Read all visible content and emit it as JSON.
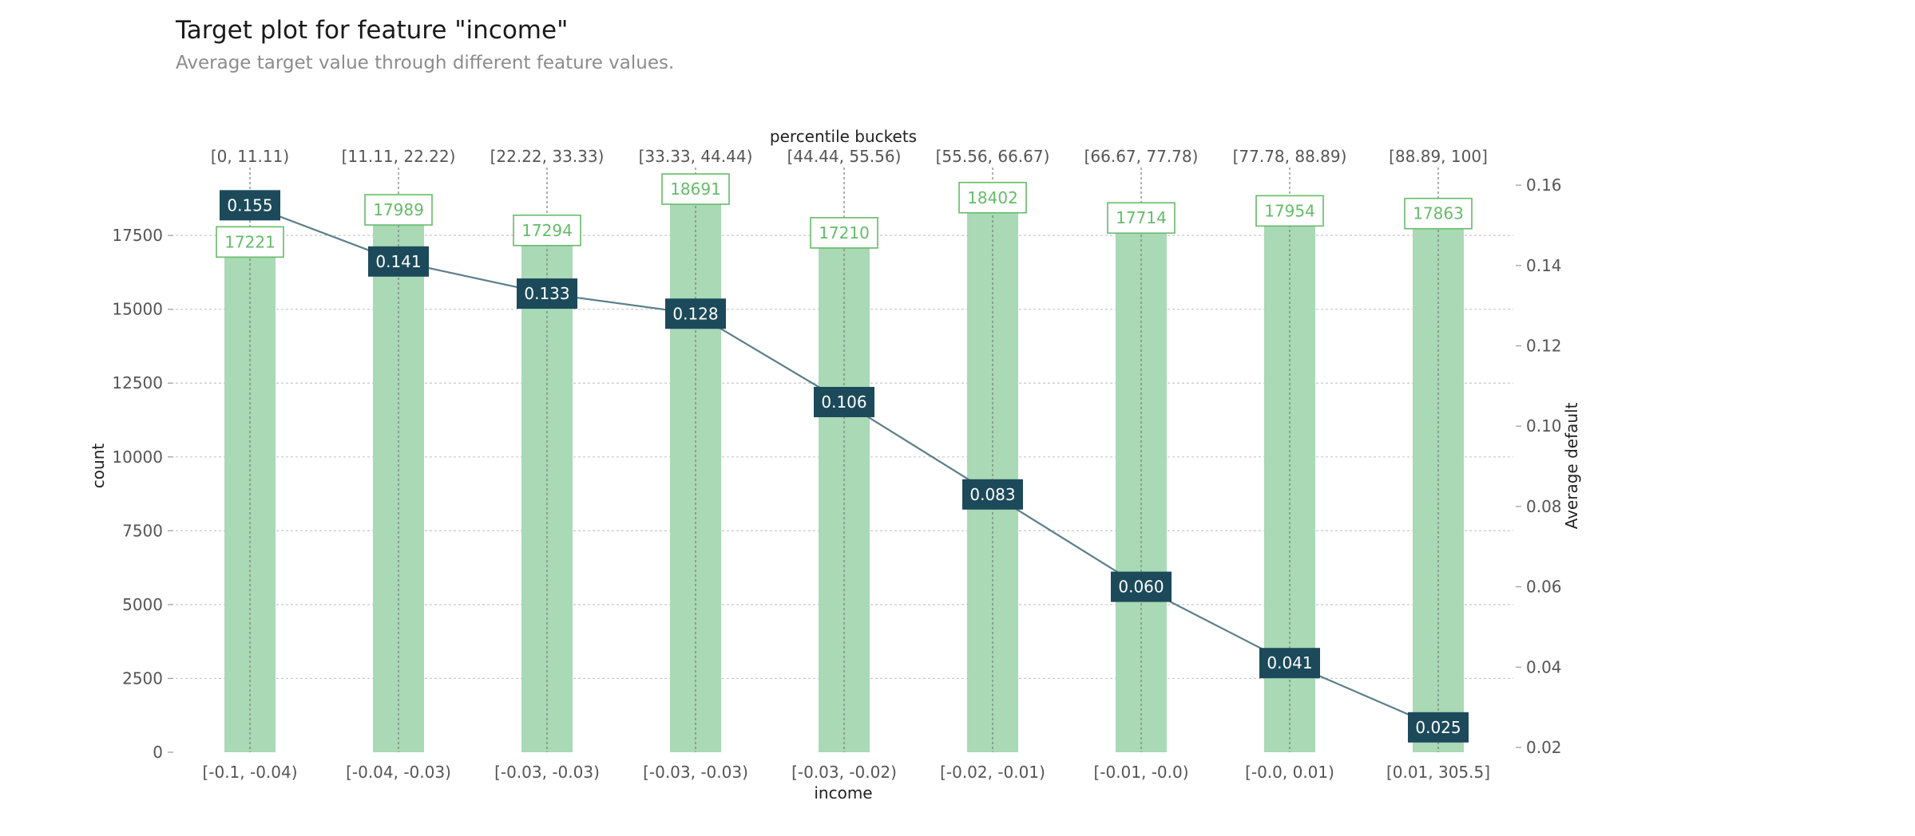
{
  "chart_data": {
    "type": "bar",
    "title": "Target plot for feature \"income\"",
    "subtitle": "Average target value through different feature values.",
    "xlabel": "income",
    "top_xlabel": "percentile buckets",
    "ylabel_left": "count",
    "ylabel_right": "Average default",
    "categories": [
      "[-0.1, -0.04)",
      "[-0.04, -0.03)",
      "[-0.03, -0.03)",
      "[-0.03, -0.03)",
      "[-0.03, -0.02)",
      "[-0.02, -0.01)",
      "[-0.01, -0.0)",
      "[-0.0, 0.01)",
      "[0.01, 305.5]"
    ],
    "percentile_buckets": [
      "[0, 11.11)",
      "[11.11, 22.22)",
      "[22.22, 33.33)",
      "[33.33, 44.44)",
      "[44.44, 55.56)",
      "[55.56, 66.67)",
      "[66.67, 77.78)",
      "[77.78, 88.89)",
      "[88.89, 100]"
    ],
    "series": [
      {
        "name": "count",
        "axis": "left",
        "kind": "bar",
        "color": "#a9d9b5",
        "label_color": "#66bb6a",
        "values": [
          17221,
          17989,
          17294,
          18691,
          17210,
          18402,
          17714,
          17954,
          17863
        ],
        "labels": [
          "17221",
          "17989",
          "17294",
          "18691",
          "17210",
          "18402",
          "17714",
          "17954",
          "17863"
        ]
      },
      {
        "name": "Average default",
        "axis": "right",
        "kind": "line",
        "color": "#5c7f8a",
        "label_bg": "#1c4a5a",
        "values": [
          0.155,
          0.141,
          0.133,
          0.128,
          0.106,
          0.083,
          0.06,
          0.041,
          0.025
        ],
        "labels": [
          "0.155",
          "0.141",
          "0.133",
          "0.128",
          "0.106",
          "0.083",
          "0.060",
          "0.041",
          "0.025"
        ]
      }
    ],
    "ylim_left": [
      0,
      19800
    ],
    "yticks_left": [
      0,
      2500,
      5000,
      7500,
      10000,
      12500,
      15000,
      17500
    ],
    "ytick_labels_left": [
      "0",
      "2500",
      "5000",
      "7500",
      "10000",
      "12500",
      "15000",
      "17500"
    ],
    "ylim_right": [
      0.0188,
      0.1644
    ],
    "yticks_right": [
      0.02,
      0.04,
      0.06,
      0.08,
      0.1,
      0.12,
      0.14,
      0.16
    ],
    "ytick_labels_right": [
      "0.02",
      "0.04",
      "0.06",
      "0.08",
      "0.10",
      "0.12",
      "0.14",
      "0.16"
    ],
    "grid": true
  }
}
